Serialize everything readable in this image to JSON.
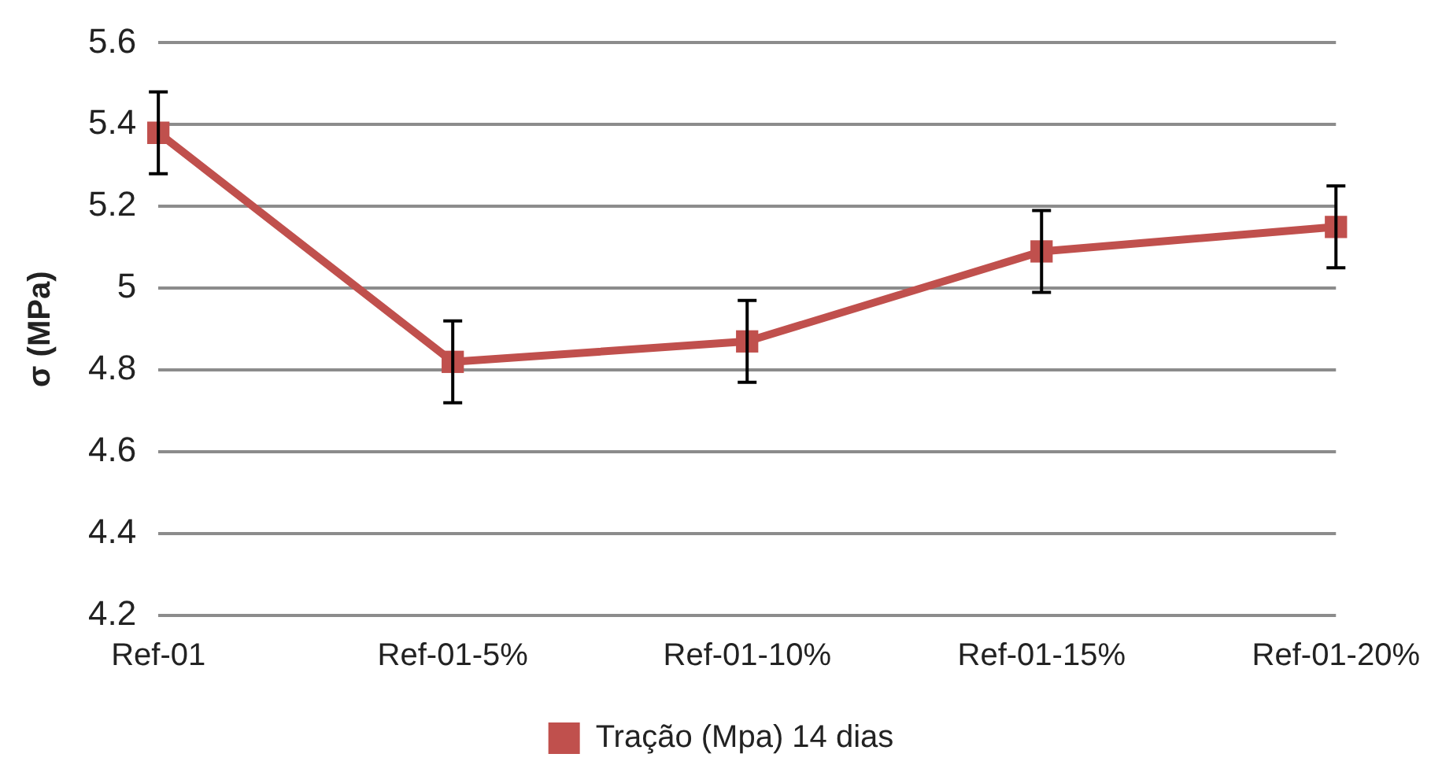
{
  "chart_data": {
    "type": "line",
    "ylabel": "σ (MPa)",
    "categories": [
      "Ref-01",
      "Ref-01-5%",
      "Ref-01-10%",
      "Ref-01-15%",
      "Ref-01-20%"
    ],
    "series": [
      {
        "name": "Tração (Mpa) 14 dias",
        "color": "#c0504d",
        "values": [
          5.38,
          4.82,
          4.87,
          5.09,
          5.15
        ],
        "errors": [
          0.1,
          0.1,
          0.1,
          0.1,
          0.1
        ]
      }
    ],
    "ylim": [
      4.2,
      5.6
    ],
    "yticks": [
      4.2,
      4.4,
      4.6,
      4.8,
      5,
      5.2,
      5.4,
      5.6
    ],
    "grid": "y",
    "legend": "bottom",
    "marker": "square",
    "line_style": "solid"
  }
}
